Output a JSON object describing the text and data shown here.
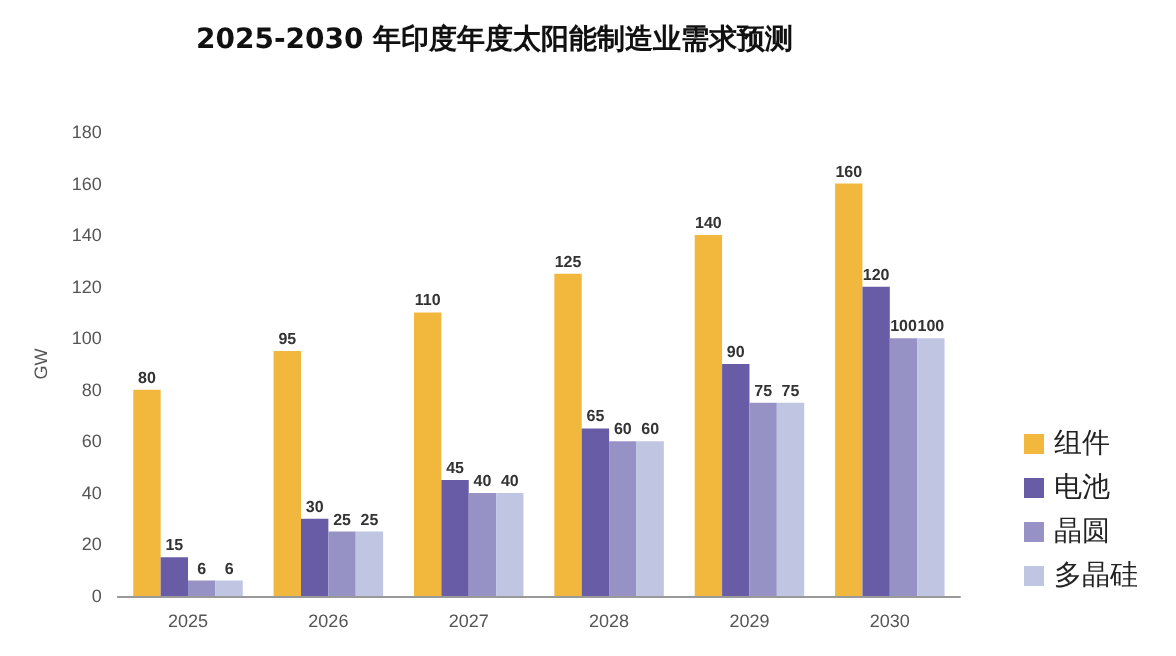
{
  "chart_data": {
    "type": "bar",
    "title": "2025-2030 年印度年度太阳能制造业需求预测",
    "ylabel": "GW",
    "categories": [
      "2025",
      "2026",
      "2027",
      "2028",
      "2029",
      "2030"
    ],
    "series": [
      {
        "name": "组件",
        "color": "#f2b73d",
        "values": [
          80,
          95,
          110,
          125,
          140,
          160
        ]
      },
      {
        "name": "电池",
        "color": "#685ca6",
        "values": [
          15,
          30,
          45,
          65,
          90,
          120
        ]
      },
      {
        "name": "晶圆",
        "color": "#9792c6",
        "values": [
          6,
          25,
          40,
          60,
          75,
          100
        ]
      },
      {
        "name": "多晶硅",
        "color": "#c0c5e2",
        "values": [
          6,
          25,
          40,
          60,
          75,
          100
        ]
      }
    ],
    "ylim": [
      0,
      180
    ],
    "yticks": [
      0,
      20,
      40,
      60,
      80,
      100,
      120,
      140,
      160,
      180
    ],
    "grid": false,
    "legend": "bottom right",
    "data_labels": true
  }
}
